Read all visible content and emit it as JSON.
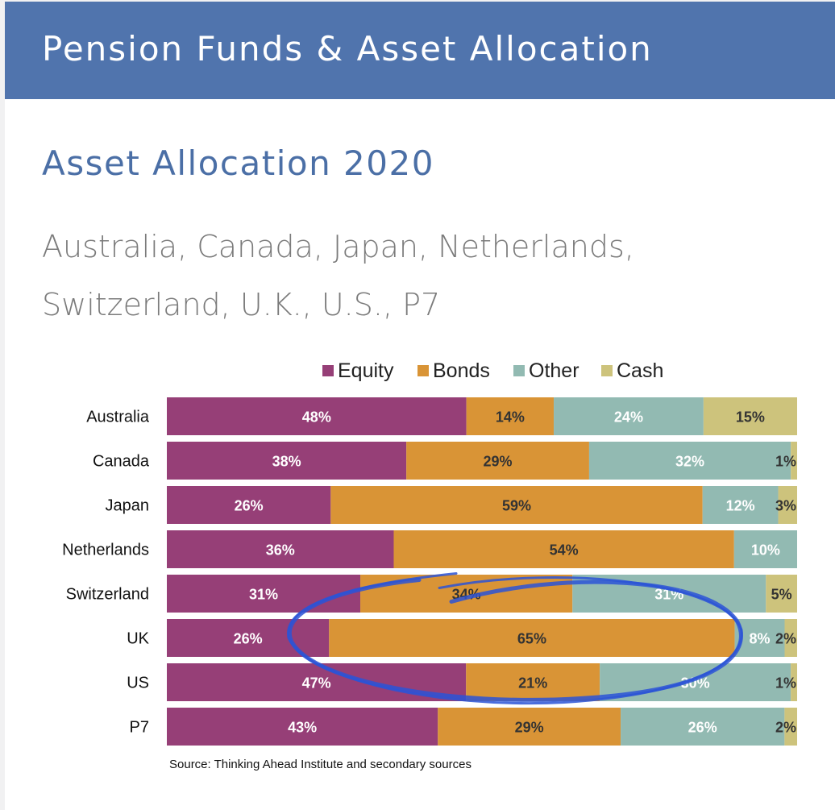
{
  "header": {
    "title": "Pension Funds & Asset Allocation"
  },
  "subtitle": "Asset Allocation 2020",
  "countries_line": "Australia, Canada, Japan, Netherlands, Switzerland, U.K., U.S., P7",
  "colors": {
    "header_bg": "#5074ad",
    "subtitle": "#4b6fa6",
    "equity": "#963f77",
    "bonds": "#d99436",
    "other": "#92bab2",
    "cash": "#cdc37c",
    "annotation": "#2b53d6"
  },
  "chart_data": {
    "type": "bar",
    "orientation": "horizontal",
    "stacked": true,
    "legend_position": "top",
    "categories": [
      "Australia",
      "Canada",
      "Japan",
      "Netherlands",
      "Switzerland",
      "UK",
      "US",
      "P7"
    ],
    "series": [
      {
        "name": "Equity",
        "values": [
          48,
          38,
          26,
          36,
          31,
          26,
          47,
          43
        ]
      },
      {
        "name": "Bonds",
        "values": [
          14,
          29,
          59,
          54,
          34,
          65,
          21,
          29
        ]
      },
      {
        "name": "Other",
        "values": [
          24,
          32,
          12,
          10,
          31,
          8,
          30,
          26
        ]
      },
      {
        "name": "Cash",
        "values": [
          15,
          1,
          3,
          0,
          5,
          2,
          1,
          2
        ]
      }
    ],
    "value_labels": [
      [
        "48%",
        "14%",
        "24%",
        "15%"
      ],
      [
        "38%",
        "29%",
        "32%",
        "1%"
      ],
      [
        "26%",
        "59%",
        "12%",
        "3%"
      ],
      [
        "36%",
        "54%",
        "10%",
        ""
      ],
      [
        "31%",
        "34%",
        "31%",
        "5%"
      ],
      [
        "26%",
        "65%",
        "8%",
        "2%"
      ],
      [
        "47%",
        "21%",
        "30%",
        "1%"
      ],
      [
        "43%",
        "29%",
        "26%",
        "2%"
      ]
    ],
    "source": "Source: Thinking Ahead Institute and secondary sources",
    "annotation": {
      "type": "hand-drawn-circle",
      "around": "UK"
    }
  }
}
